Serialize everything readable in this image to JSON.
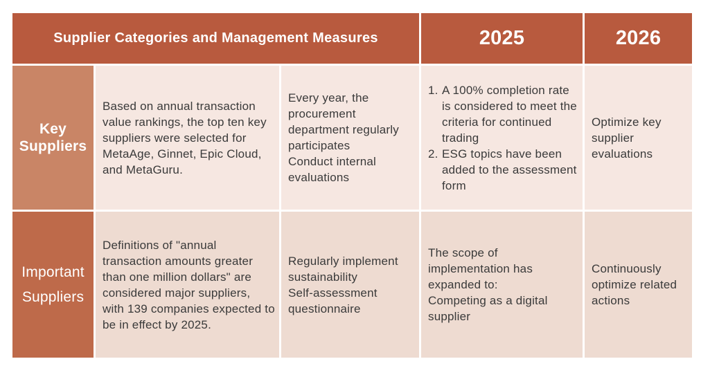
{
  "header": {
    "title": "Supplier Categories and Management Measures",
    "year_2025": "2025",
    "year_2026": "2026"
  },
  "rows": [
    {
      "category": "Key Suppliers",
      "category_lines": [
        "Key",
        "Suppliers"
      ],
      "definition": "Based on annual transaction value rankings, the top ten key suppliers were selected for MetaAge, Ginnet, Epic Cloud, and  MetaGuru.",
      "measure_lines": [
        "Every year, the procurement department regularly participates",
        "Conduct internal evaluations"
      ],
      "plan_2025_items": [
        {
          "num": "1.",
          "text": "A 100% completion rate is considered to meet the criteria for continued trading"
        },
        {
          "num": "2.",
          "text": "ESG topics have been added to the assessment form"
        }
      ],
      "plan_2026": "Optimize key supplier evaluations"
    },
    {
      "category": "Important Suppliers",
      "category_lines": [
        "Important",
        "Suppliers"
      ],
      "definition": "Definitions of \"annual transaction amounts greater than one million dollars\" are considered major suppliers, with 139 companies expected to be in effect by 2025.",
      "measure_lines": [
        "Regularly implement sustainability",
        "Self-assessment questionnaire"
      ],
      "plan_2025_lines": [
        "The scope of implementation has expanded to:",
        "Competing as a digital supplier"
      ],
      "plan_2026": "Continuously optimize related actions"
    }
  ],
  "colors": {
    "header_bg": "#b85a3e",
    "key_label_bg": "#c98566",
    "important_label_bg": "#be6a4a",
    "row1_bg": "#f6e7e1",
    "row2_bg": "#eedbd1",
    "text": "#3a3a3a"
  }
}
